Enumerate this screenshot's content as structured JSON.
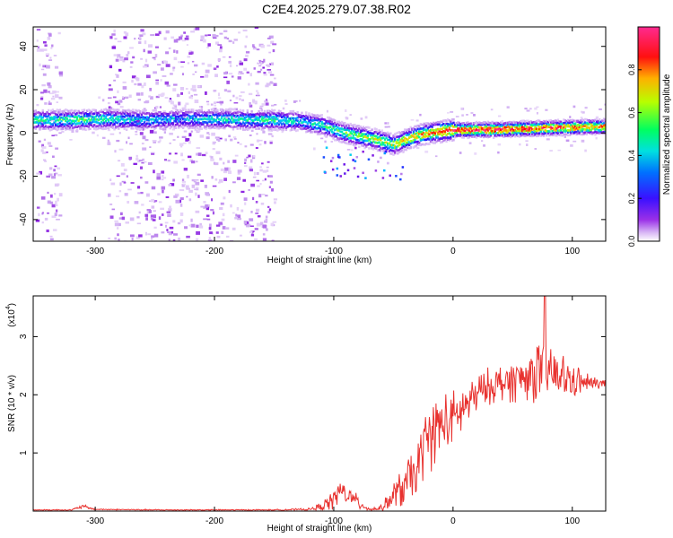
{
  "figure_title": "C2E4.2025.279.07.38.R02",
  "colors": {
    "trace": "#e8322f",
    "axis": "#000000"
  },
  "colormap": [
    "#ffffff",
    "#c89ff0",
    "#8a1fe0",
    "#2a10ff",
    "#00c8ff",
    "#00ff80",
    "#c8ff00",
    "#ffb000",
    "#ff0000",
    "#ff2a8c"
  ],
  "chart_data": [
    {
      "type": "heatmap",
      "title": "",
      "xlabel": "Height of straight line (km)",
      "ylabel": "Frequency (Hz)",
      "xlim": [
        -352,
        128
      ],
      "ylim": [
        -50,
        49
      ],
      "xticks": [
        -300,
        -200,
        -100,
        0,
        100
      ],
      "xtick_labels": [
        "-300",
        "-200",
        "-100",
        "0",
        "100"
      ],
      "yticks": [
        -40,
        -20,
        0,
        20,
        40
      ],
      "ytick_labels": [
        "-40",
        "-20",
        "0",
        "20",
        "40"
      ],
      "ridge": {
        "x": [
          -350,
          -320,
          -290,
          -260,
          -230,
          -200,
          -170,
          -150,
          -130,
          -110,
          -95,
          -80,
          -65,
          -50,
          -40,
          -30,
          -15,
          0,
          30,
          60,
          90,
          128
        ],
        "freq": [
          6,
          6,
          6.5,
          6,
          6.5,
          6.5,
          6,
          6,
          5.5,
          3.5,
          0.5,
          -1.5,
          -3,
          -5.5,
          -3,
          -1,
          0.5,
          1.5,
          1.5,
          2,
          2.5,
          3
        ],
        "amp": [
          0.55,
          0.6,
          0.55,
          0.5,
          0.45,
          0.5,
          0.55,
          0.55,
          0.5,
          0.55,
          0.6,
          0.65,
          0.7,
          0.7,
          0.75,
          0.8,
          0.85,
          0.95,
          1.0,
          0.95,
          0.9,
          0.85
        ]
      },
      "noise_bands_km": [
        [
          -350,
          -330
        ],
        [
          -290,
          -150
        ]
      ],
      "colorbar": {
        "label": "Normalized spectral amplitude",
        "range": [
          0,
          1
        ],
        "ticks": [
          0.0,
          0.2,
          0.4,
          0.6,
          0.8
        ],
        "tick_labels": [
          "0.0",
          "0.2",
          "0.4",
          "0.6",
          "0.8"
        ]
      }
    },
    {
      "type": "line",
      "title": "",
      "xlabel": "Height of straight line (km)",
      "ylabel": "SNR (10 * v/v)",
      "scale_label": "(x10",
      "scale_exponent": "4",
      "xlim": [
        -352,
        128
      ],
      "ylim": [
        0,
        3.7
      ],
      "xticks": [
        -300,
        -200,
        -100,
        0,
        100
      ],
      "xtick_labels": [
        "-300",
        "-200",
        "-100",
        "0",
        "100"
      ],
      "yticks": [
        1,
        2,
        3
      ],
      "ytick_labels": [
        "1",
        "2",
        "3"
      ],
      "series": [
        {
          "name": "SNR",
          "envelope_x": [
            -352,
            -320,
            -310,
            -300,
            -250,
            -200,
            -150,
            -120,
            -110,
            -100,
            -95,
            -90,
            -80,
            -70,
            -60,
            -50,
            -40,
            -30,
            -25,
            -20,
            -10,
            0,
            10,
            20,
            30,
            40,
            60,
            75,
            80,
            90,
            100,
            110,
            120,
            128
          ],
          "envelope_y": [
            0.02,
            0.02,
            0.08,
            0.03,
            0.02,
            0.02,
            0.02,
            0.03,
            0.08,
            0.2,
            0.35,
            0.3,
            0.15,
            0.03,
            0.05,
            0.25,
            0.45,
            0.7,
            1.1,
            1.3,
            1.5,
            1.55,
            1.8,
            2.0,
            2.15,
            2.2,
            2.3,
            2.45,
            2.4,
            2.3,
            2.25,
            2.2,
            2.2,
            2.2
          ],
          "noise_y": [
            0.01,
            0.01,
            0.04,
            0.01,
            0.01,
            0.01,
            0.01,
            0.02,
            0.08,
            0.18,
            0.22,
            0.2,
            0.12,
            0.03,
            0.05,
            0.25,
            0.4,
            0.5,
            0.55,
            0.6,
            0.55,
            0.5,
            0.4,
            0.35,
            0.3,
            0.35,
            0.4,
            0.6,
            0.55,
            0.45,
            0.3,
            0.2,
            0.1,
            0.08
          ],
          "peak": {
            "x": 77,
            "y": 3.7
          }
        }
      ]
    }
  ]
}
